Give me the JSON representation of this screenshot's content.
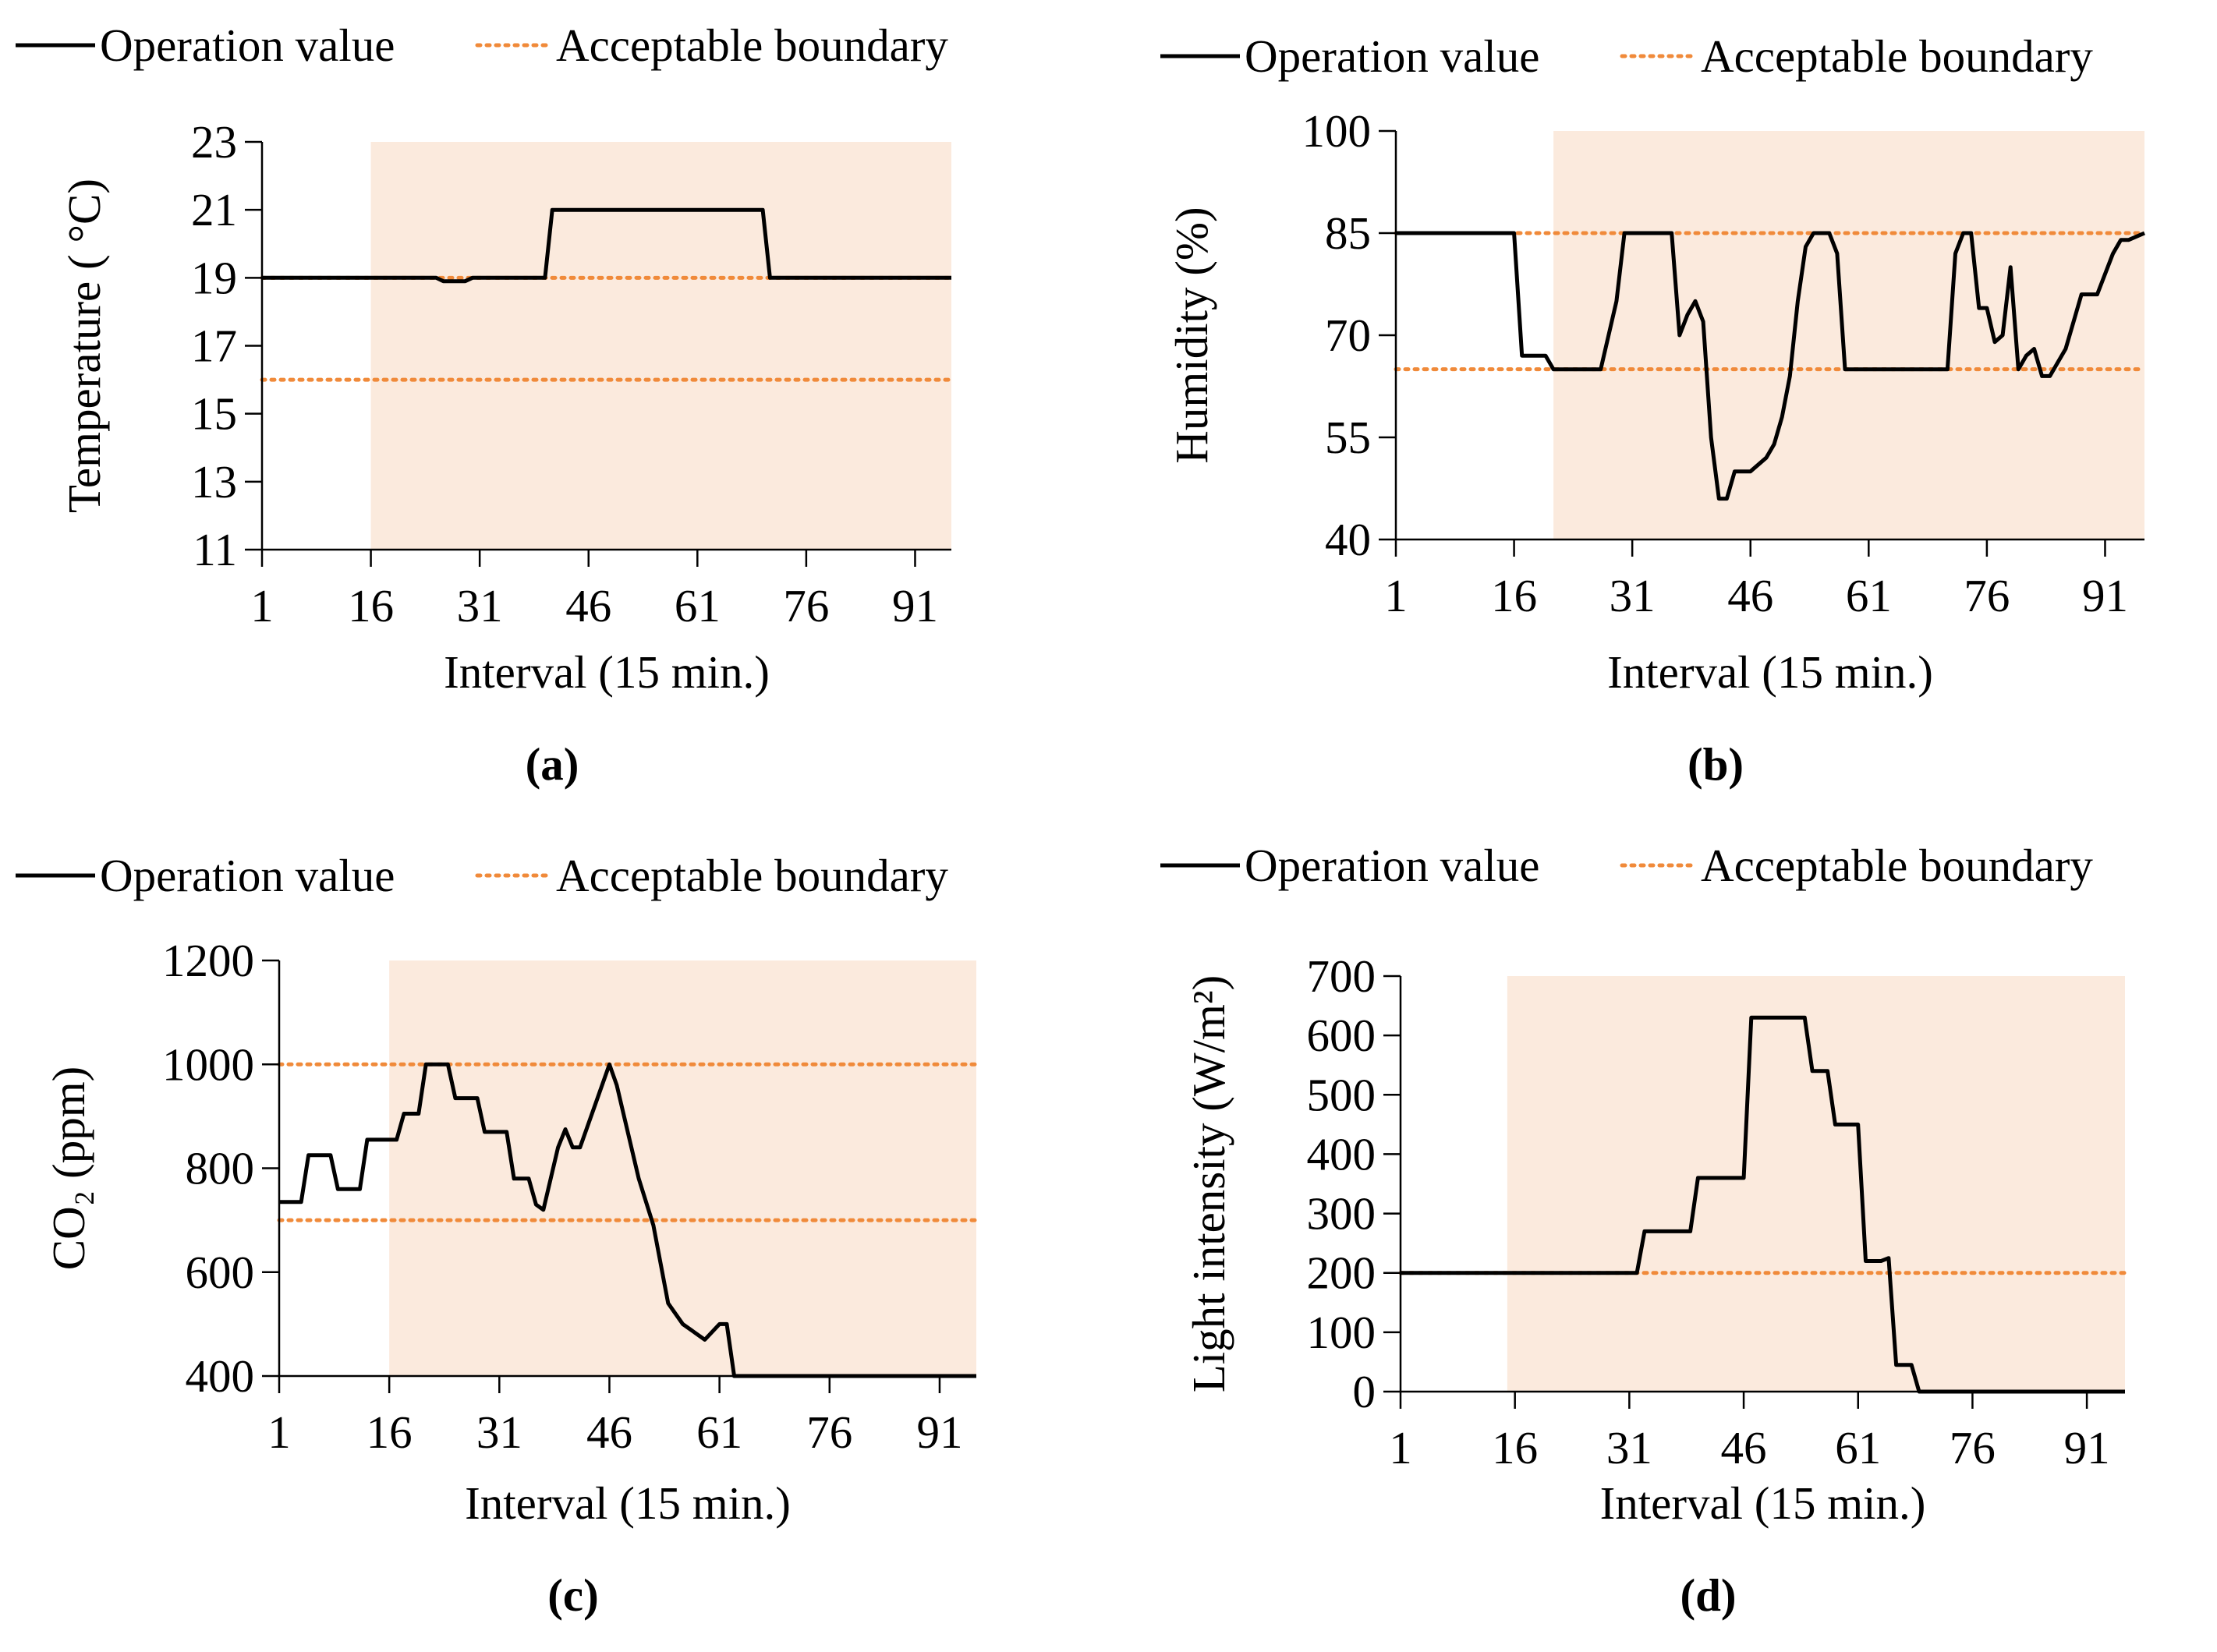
{
  "colors": {
    "operation": "#000000",
    "boundary": "#f08a3a",
    "shade": "#fbeadd",
    "axis": "#000000"
  },
  "chart_data": [
    {
      "panel_label": "(a)",
      "type": "line",
      "ylabel": "Temperature (  °C)",
      "xlabel": "Interval (15 min.)",
      "xlim": [
        1,
        96
      ],
      "xticks": [
        1,
        16,
        31,
        46,
        61,
        76,
        91
      ],
      "ylim": [
        11,
        23
      ],
      "yticks": [
        11,
        13,
        15,
        17,
        19,
        21,
        23
      ],
      "legend": [
        "Operation value",
        "Acceptable boundary"
      ],
      "shaded_interval": [
        16,
        96
      ],
      "boundaries": [
        19,
        16
      ],
      "series": [
        {
          "name": "Operation value",
          "x": [
            1,
            25,
            26,
            29,
            30,
            40,
            41,
            70,
            71,
            96
          ],
          "y": [
            19,
            19,
            18.9,
            18.9,
            19,
            19,
            21,
            21,
            19,
            19
          ]
        }
      ]
    },
    {
      "panel_label": "(b)",
      "type": "line",
      "ylabel": "Humidity (%)",
      "xlabel": "Interval (15 min.)",
      "xlim": [
        1,
        96
      ],
      "xticks": [
        1,
        16,
        31,
        46,
        61,
        76,
        91
      ],
      "ylim": [
        40,
        100
      ],
      "yticks": [
        40,
        55,
        70,
        85,
        100
      ],
      "legend": [
        "Operation value",
        "Acceptable boundary"
      ],
      "shaded_interval": [
        21,
        96
      ],
      "boundaries": [
        85,
        65
      ],
      "series": [
        {
          "name": "Operation value",
          "x": [
            1,
            16,
            17,
            19,
            20,
            21,
            22,
            27,
            29,
            30,
            36,
            37,
            38,
            39,
            40,
            41,
            42,
            43,
            44,
            46,
            48,
            49,
            50,
            51,
            52,
            53,
            54,
            55,
            56,
            57,
            58,
            59,
            60,
            61,
            71,
            72,
            73,
            74,
            75,
            76,
            77,
            78,
            79,
            80,
            81,
            82,
            83,
            84,
            85,
            86,
            87,
            88,
            89,
            90,
            91,
            92,
            93,
            94,
            96
          ],
          "y": [
            85,
            85,
            67,
            67,
            67,
            65,
            65,
            65,
            75,
            85,
            85,
            70,
            73,
            75,
            72,
            55,
            46,
            46,
            50,
            50,
            52,
            54,
            58,
            64,
            75,
            83,
            85,
            85,
            85,
            82,
            65,
            65,
            65,
            65,
            65,
            82,
            85,
            85,
            74,
            74,
            69,
            70,
            80,
            65,
            67,
            68,
            64,
            64,
            66,
            68,
            72,
            76,
            76,
            76,
            79,
            82,
            84,
            84,
            85
          ]
        }
      ]
    },
    {
      "panel_label": "(c)",
      "type": "line",
      "ylabel": "CO₂ (ppm)",
      "xlabel": "Interval (15 min.)",
      "xlim": [
        1,
        96
      ],
      "xticks": [
        1,
        16,
        31,
        46,
        61,
        76,
        91
      ],
      "ylim": [
        400,
        1200
      ],
      "yticks": [
        400,
        600,
        800,
        1000,
        1200
      ],
      "legend": [
        "Operation value",
        "Acceptable boundary"
      ],
      "shaded_interval": [
        16,
        96
      ],
      "boundaries": [
        1000,
        700
      ],
      "series": [
        {
          "name": "Operation value",
          "x": [
            1,
            4,
            5,
            8,
            9,
            10,
            12,
            13,
            14,
            17,
            18,
            20,
            21,
            22,
            24,
            25,
            28,
            29,
            32,
            33,
            35,
            36,
            37,
            38,
            39,
            40,
            41,
            42,
            44,
            45,
            46,
            47,
            48,
            50,
            52,
            54,
            56,
            59,
            61,
            62,
            63,
            96
          ],
          "y": [
            735,
            735,
            825,
            825,
            760,
            760,
            760,
            855,
            855,
            855,
            905,
            905,
            1000,
            1000,
            1000,
            935,
            935,
            870,
            870,
            780,
            780,
            730,
            720,
            780,
            840,
            875,
            840,
            840,
            920,
            960,
            1000,
            960,
            900,
            780,
            690,
            540,
            500,
            470,
            500,
            500,
            400,
            400
          ]
        }
      ]
    },
    {
      "panel_label": "(d)",
      "type": "line",
      "ylabel": "Light intensity (W/m²)",
      "xlabel": "Interval (15 min.)",
      "xlim": [
        1,
        96
      ],
      "xticks": [
        1,
        16,
        31,
        46,
        61,
        76,
        91
      ],
      "ylim": [
        0,
        700
      ],
      "yticks": [
        0,
        100,
        200,
        300,
        400,
        500,
        600,
        700
      ],
      "legend": [
        "Operation value",
        "Acceptable boundary"
      ],
      "shaded_interval": [
        15,
        96
      ],
      "boundaries": [
        200
      ],
      "series": [
        {
          "name": "Operation value",
          "x": [
            1,
            32,
            33,
            39,
            40,
            46,
            47,
            54,
            55,
            57,
            58,
            60,
            61,
            62,
            63,
            64,
            65,
            66,
            67,
            68,
            69,
            70,
            71,
            96
          ],
          "y": [
            200,
            200,
            270,
            270,
            360,
            360,
            630,
            630,
            540,
            540,
            450,
            450,
            450,
            220,
            220,
            220,
            225,
            45,
            45,
            45,
            0,
            0,
            0,
            0
          ]
        }
      ]
    }
  ]
}
